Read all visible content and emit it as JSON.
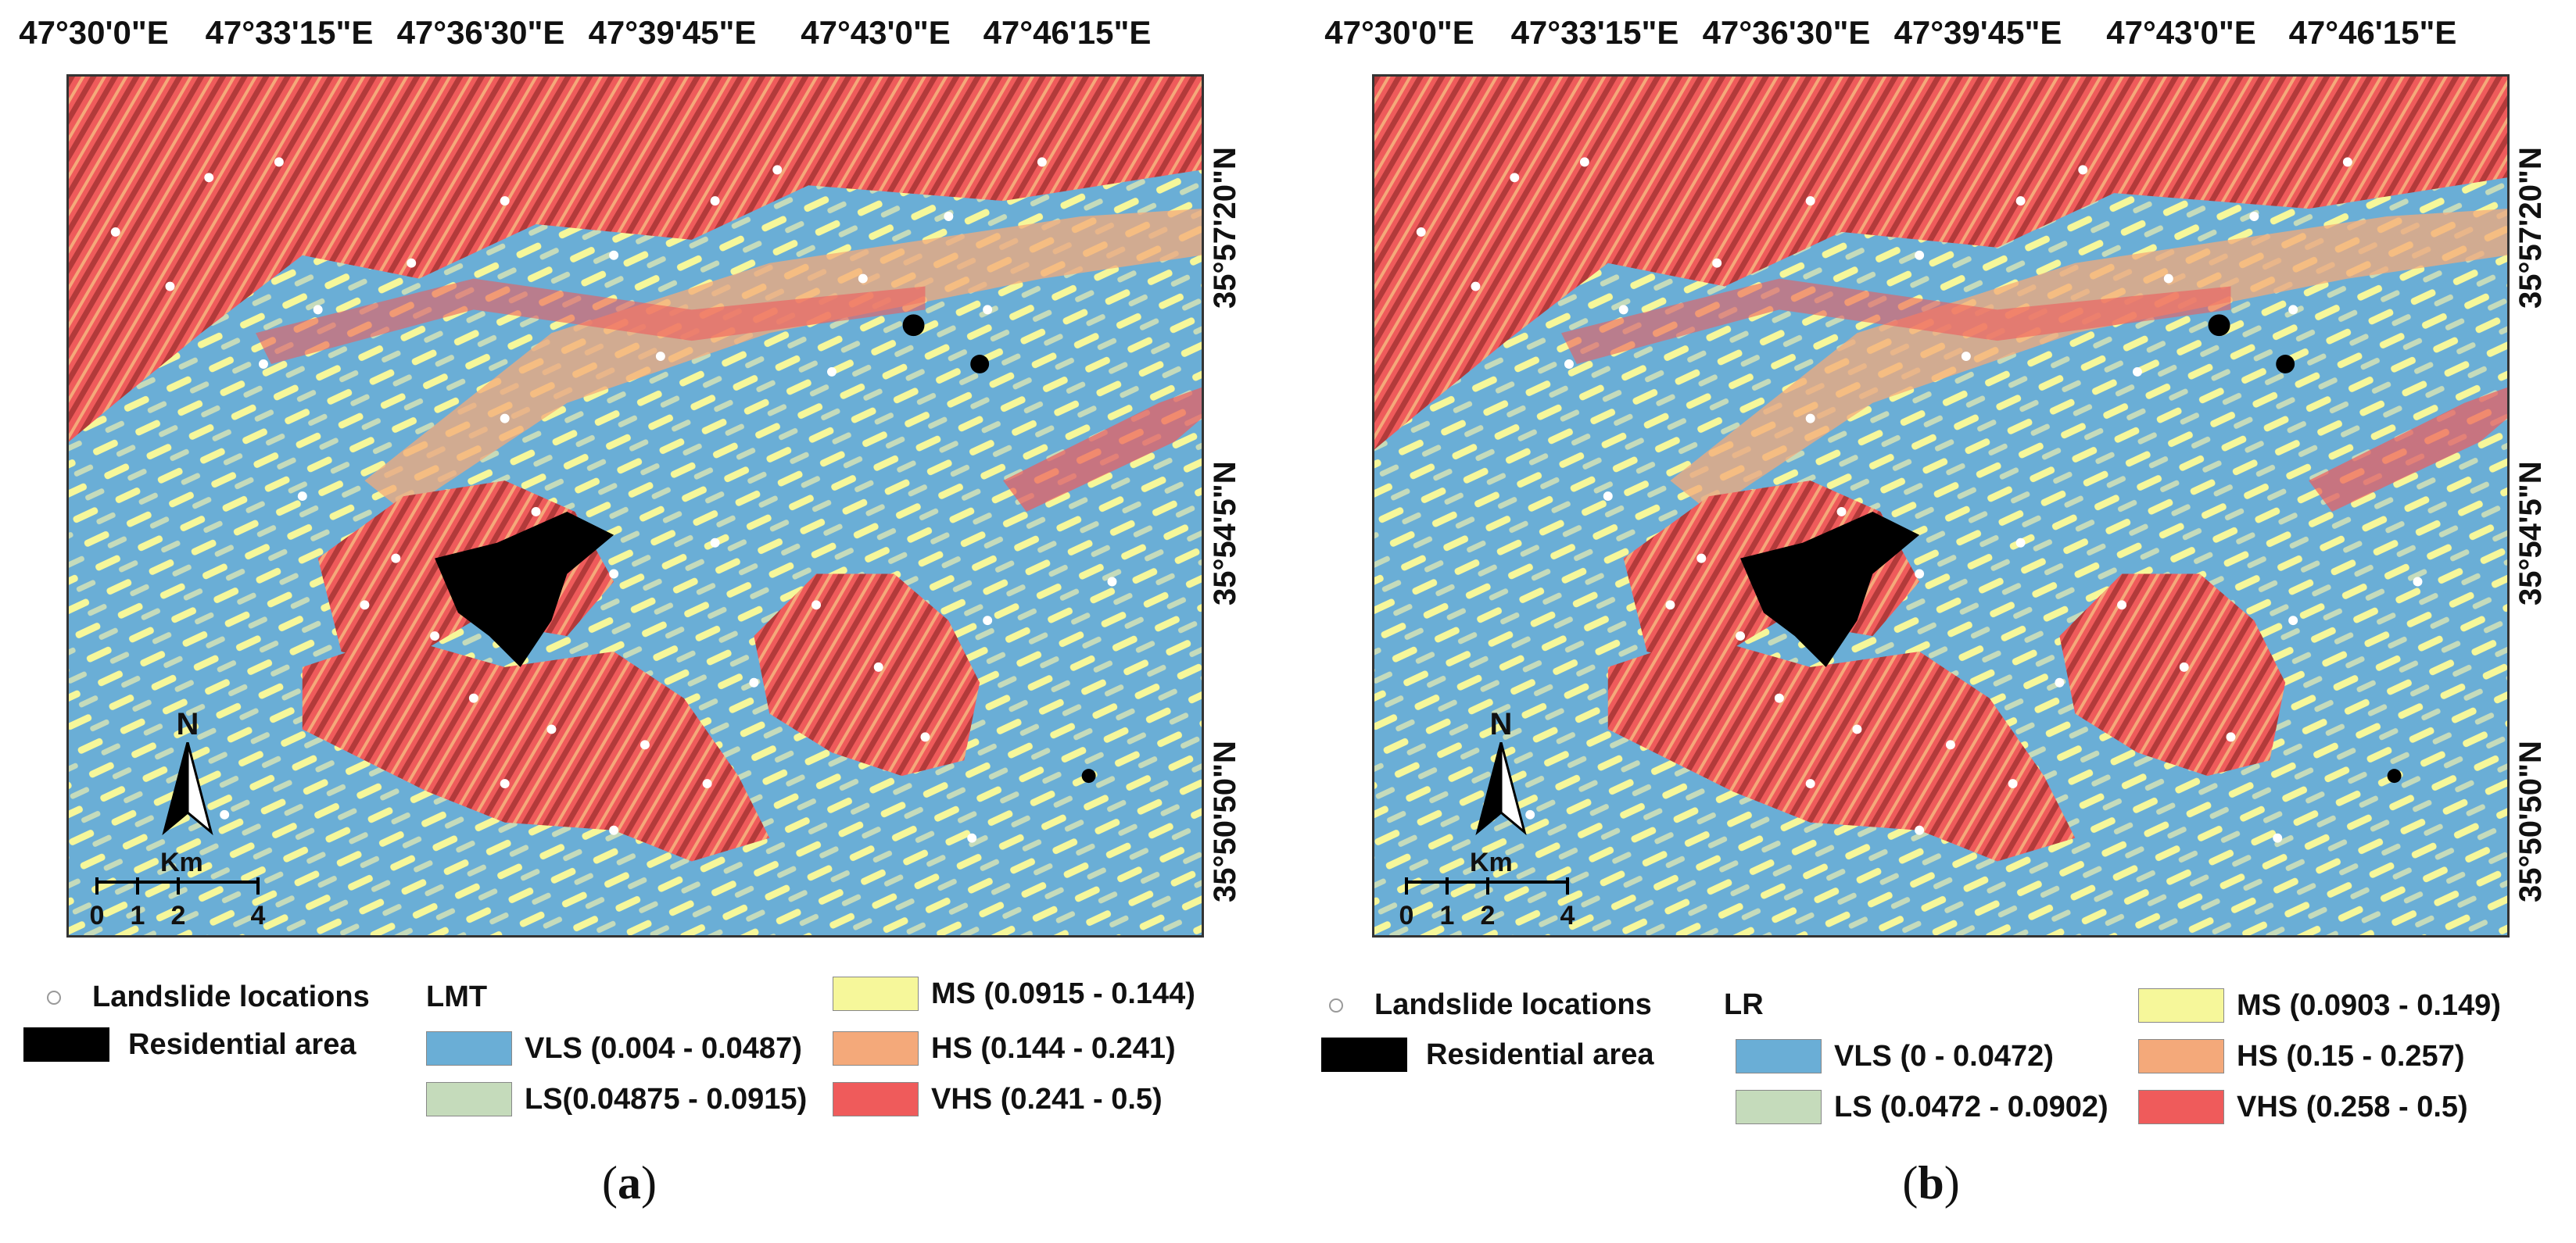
{
  "longitude_labels": [
    "47°30'0\"E",
    "47°33'15\"E",
    "47°36'30\"E",
    "47°39'45\"E",
    "47°43'0\"E",
    "47°46'15\"E"
  ],
  "latitude_labels": [
    "35°57'20\"N",
    "35°54'5\"N",
    "35°50'50\"N"
  ],
  "north_arrow": {
    "letter": "N"
  },
  "scale_bar": {
    "title": "Km",
    "ticks": [
      "0",
      "1",
      "2",
      "4"
    ]
  },
  "legend_common": {
    "landslide": "Landslide locations",
    "residential": "Residential area"
  },
  "colors": {
    "vls": "#6aaed6",
    "ls": "#c5dbbb",
    "ms": "#f6f79a",
    "hs": "#f4a97a",
    "vhs": "#ef5b5b",
    "residential": "#000000",
    "landslide_point": "#ffffff"
  },
  "panels": [
    {
      "id": "a",
      "model": "LMT",
      "classes": {
        "vls": "VLS (0.004 - 0.0487)",
        "ls": "LS(0.04875 - 0.0915)",
        "ms": "MS (0.0915 - 0.144)",
        "hs": "HS (0.144 - 0.241)",
        "vhs": "VHS (0.241 - 0.5)"
      },
      "caption_open": "(",
      "caption_letter": "a",
      "caption_close": ")"
    },
    {
      "id": "b",
      "model": "LR",
      "classes": {
        "vls": "VLS (0 - 0.0472)",
        "ls": "LS (0.0472 - 0.0902)",
        "ms": "MS (0.0903 - 0.149)",
        "hs": "HS (0.15 - 0.257)",
        "vhs": "VHS (0.258 - 0.5)"
      },
      "caption_open": "(",
      "caption_letter": "b",
      "caption_close": ")"
    }
  ]
}
